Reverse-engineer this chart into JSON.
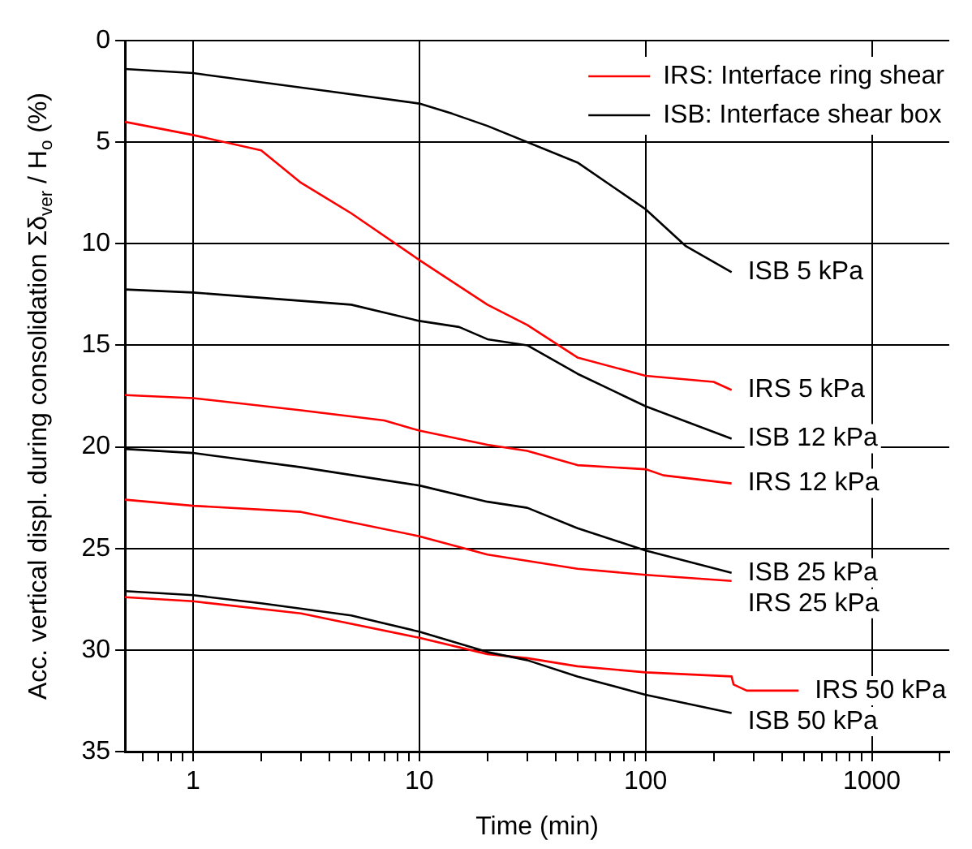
{
  "chart_data": {
    "type": "line",
    "xlabel": "Time (min)",
    "ylabel": "Acc. vertical displ. during consolidation Σδ$_{ver}$ / H$_{o}$ (%)",
    "log": "x",
    "grid": true,
    "legend": "top right",
    "marker": "none",
    "line_style": "solid",
    "xlim": [
      0.5,
      2200
    ],
    "ylim": [
      35,
      0
    ],
    "xticks": [
      {
        "value": 0.6,
        "label": null
      },
      {
        "value": 0.7,
        "label": null
      },
      {
        "value": 0.8,
        "label": null
      },
      {
        "value": 0.9,
        "label": null
      },
      1,
      {
        "value": 2,
        "label": null
      },
      {
        "value": 3,
        "label": null
      },
      {
        "value": 4,
        "label": null
      },
      {
        "value": 5,
        "label": null
      },
      {
        "value": 6,
        "label": null
      },
      {
        "value": 7,
        "label": null
      },
      {
        "value": 8,
        "label": null
      },
      {
        "value": 9,
        "label": null
      },
      10,
      {
        "value": 20,
        "label": null
      },
      {
        "value": 30,
        "label": null
      },
      {
        "value": 40,
        "label": null
      },
      {
        "value": 50,
        "label": null
      },
      {
        "value": 60,
        "label": null
      },
      {
        "value": 70,
        "label": null
      },
      {
        "value": 80,
        "label": null
      },
      {
        "value": 90,
        "label": null
      },
      100,
      {
        "value": 200,
        "label": null
      },
      {
        "value": 300,
        "label": null
      },
      {
        "value": 400,
        "label": null
      },
      {
        "value": 500,
        "label": null
      },
      {
        "value": 600,
        "label": null
      },
      {
        "value": 700,
        "label": null
      },
      {
        "value": 800,
        "label": null
      },
      {
        "value": 900,
        "label": null
      },
      1000,
      {
        "value": 2000,
        "label": null
      }
    ],
    "yticks": [
      0,
      5,
      10,
      15,
      20,
      25,
      30,
      35
    ],
    "series": [
      {
        "name": "IRS: Interface ring shear",
        "color": "#ff0000",
        "x": [
          0.5,
          1,
          2,
          3,
          5,
          10,
          20,
          30,
          50,
          100,
          200,
          240
        ],
        "values": [
          4.0,
          4.65,
          5.4,
          7.0,
          8.5,
          10.8,
          13.0,
          14.0,
          15.6,
          16.5,
          16.8,
          17.2
        ]
      },
      {
        "name": "ISB: Interface shear box",
        "color": "#000000",
        "x": [
          0.5,
          1,
          4,
          10,
          14,
          20,
          50,
          100,
          150,
          240
        ],
        "values": [
          1.4,
          1.6,
          2.5,
          3.1,
          3.6,
          4.2,
          6.0,
          8.3,
          10.1,
          11.4
        ]
      },
      {
        "color": "#000000",
        "x": [
          0.5,
          1,
          5,
          10,
          15,
          20,
          30,
          50,
          100,
          240
        ],
        "values": [
          12.25,
          12.4,
          13.0,
          13.8,
          14.1,
          14.7,
          15.0,
          16.4,
          18.0,
          19.6
        ]
      },
      {
        "color": "#ff0000",
        "x": [
          0.5,
          1,
          3,
          7,
          10,
          20,
          30,
          50,
          100,
          120,
          240
        ],
        "values": [
          17.45,
          17.6,
          18.2,
          18.7,
          19.2,
          19.9,
          20.2,
          20.9,
          21.1,
          21.4,
          21.8
        ]
      },
      {
        "color": "#000000",
        "x": [
          0.5,
          1,
          3,
          10,
          20,
          30,
          50,
          100,
          240
        ],
        "values": [
          20.1,
          20.3,
          21.0,
          21.9,
          22.7,
          23.0,
          24.0,
          25.1,
          26.2
        ]
      },
      {
        "color": "#ff0000",
        "x": [
          0.5,
          1,
          3,
          10,
          20,
          50,
          100,
          240
        ],
        "values": [
          22.6,
          22.9,
          23.2,
          24.4,
          25.3,
          26.0,
          26.3,
          26.6
        ]
      },
      {
        "color": "#000000",
        "x": [
          0.5,
          1,
          2,
          5,
          10,
          20,
          30,
          50,
          100,
          240
        ],
        "values": [
          27.1,
          27.3,
          27.7,
          28.3,
          29.1,
          30.1,
          30.5,
          31.3,
          32.2,
          33.1
        ]
      },
      {
        "color": "#ff0000",
        "x": [
          0.5,
          1,
          3,
          10,
          20,
          30,
          50,
          100,
          240,
          245,
          280,
          475
        ],
        "values": [
          27.4,
          27.6,
          28.2,
          29.4,
          30.2,
          30.4,
          30.8,
          31.1,
          31.3,
          31.7,
          32.0,
          32.0
        ]
      }
    ],
    "annotations": [
      "IRS 5 kPa",
      "ISB 5 kPa",
      "ISB 12 kPa",
      "IRS 12 kPa",
      "ISB 25 kPa",
      "IRS 25 kPa",
      "ISB 50 kPa",
      "IRS 50 kPa"
    ]
  }
}
